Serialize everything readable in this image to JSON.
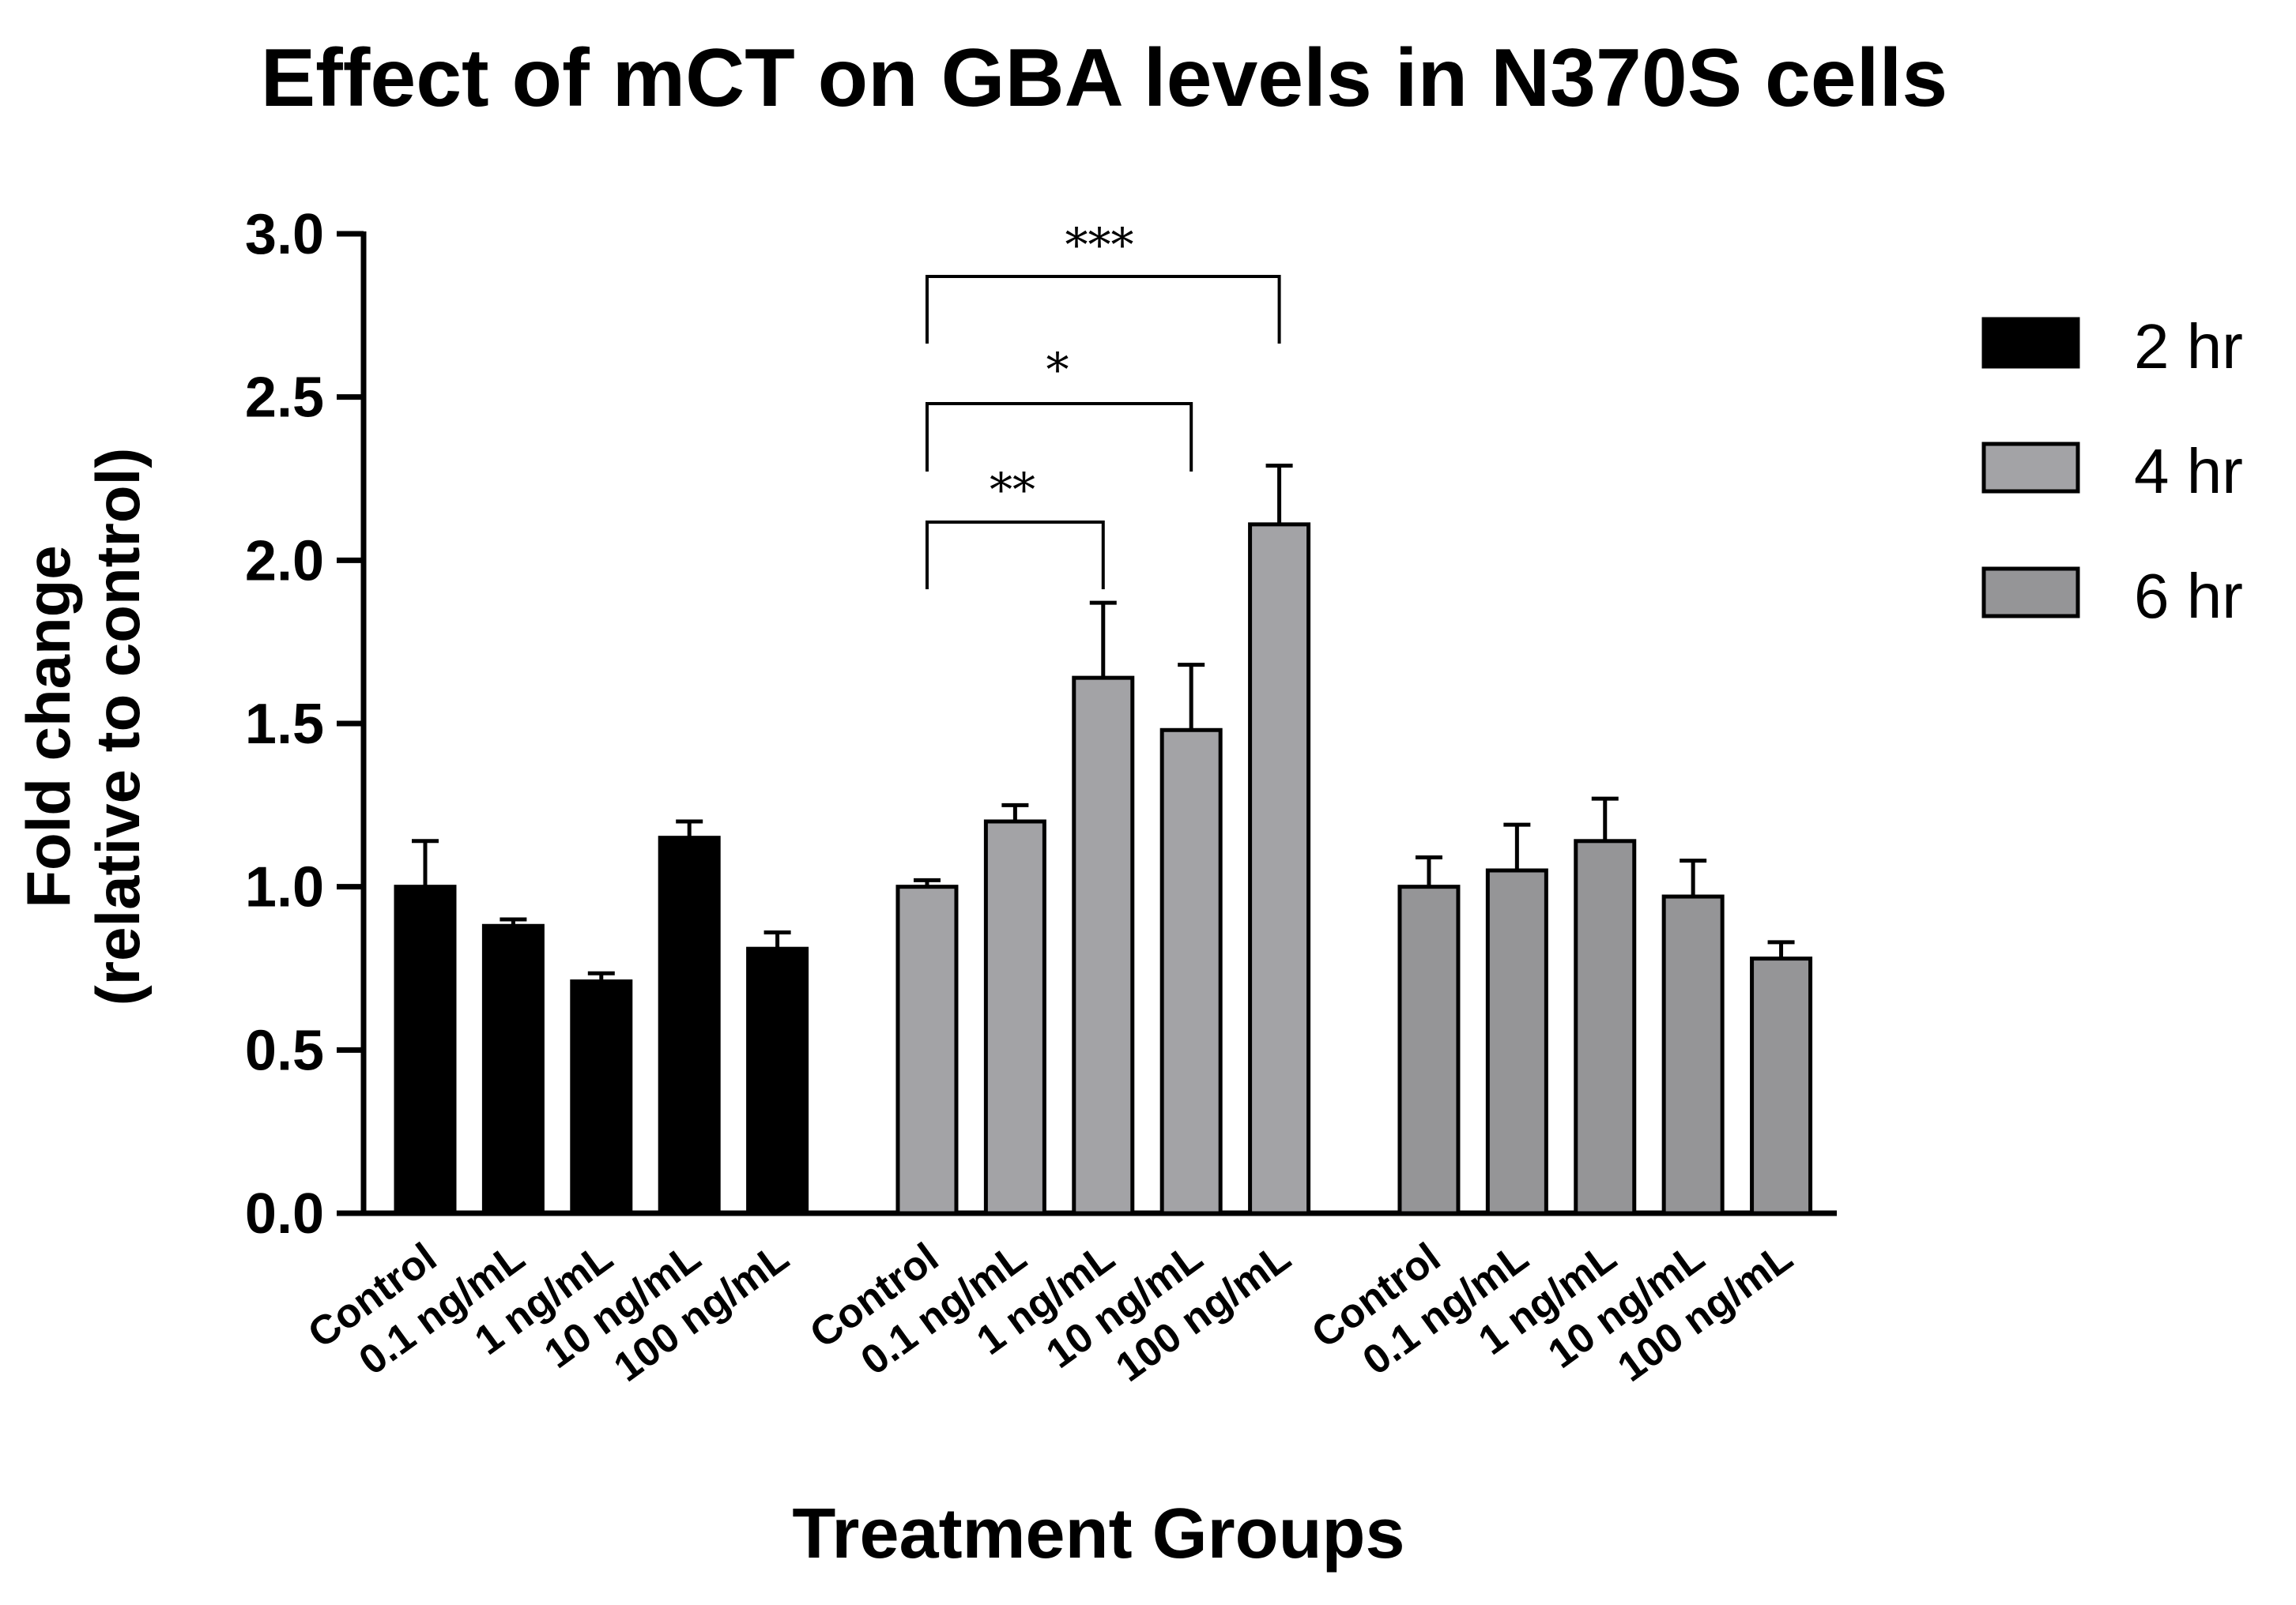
{
  "chart_data": {
    "type": "bar",
    "title": "Effect of mCT on GBA levels in N370S cells",
    "xlabel": "Treatment Groups",
    "ylabel_line1": "Fold change",
    "ylabel_line2": "(relative to control)",
    "ylim": [
      0,
      3.0
    ],
    "yticks": [
      "0.0",
      "0.5",
      "1.0",
      "1.5",
      "2.0",
      "2.5",
      "3.0"
    ],
    "categories": [
      "Control",
      "0.1 ng/mL",
      "1 ng/mL",
      "10 ng/mL",
      "100 ng/mL"
    ],
    "series": [
      {
        "name": "2 hr",
        "color": "#000000",
        "values": [
          1.0,
          0.88,
          0.71,
          1.15,
          0.81
        ],
        "errors": [
          0.14,
          0.02,
          0.025,
          0.05,
          0.05
        ]
      },
      {
        "name": "4 hr",
        "color": "#a3a3a6",
        "values": [
          1.0,
          1.2,
          1.64,
          1.48,
          2.11
        ],
        "errors": [
          0.02,
          0.05,
          0.23,
          0.2,
          0.18
        ]
      },
      {
        "name": "6 hr",
        "color": "#959597",
        "values": [
          1.0,
          1.05,
          1.14,
          0.97,
          0.78
        ],
        "errors": [
          0.09,
          0.14,
          0.13,
          0.11,
          0.05
        ]
      }
    ],
    "significance": [
      {
        "series": 1,
        "from": 0,
        "to": 2,
        "label": "**"
      },
      {
        "series": 1,
        "from": 0,
        "to": 3,
        "label": "*"
      },
      {
        "series": 1,
        "from": 0,
        "to": 4,
        "label": "***"
      }
    ],
    "legend": {
      "position": "right",
      "entries": [
        "2 hr",
        "4 hr",
        "6 hr"
      ]
    }
  }
}
